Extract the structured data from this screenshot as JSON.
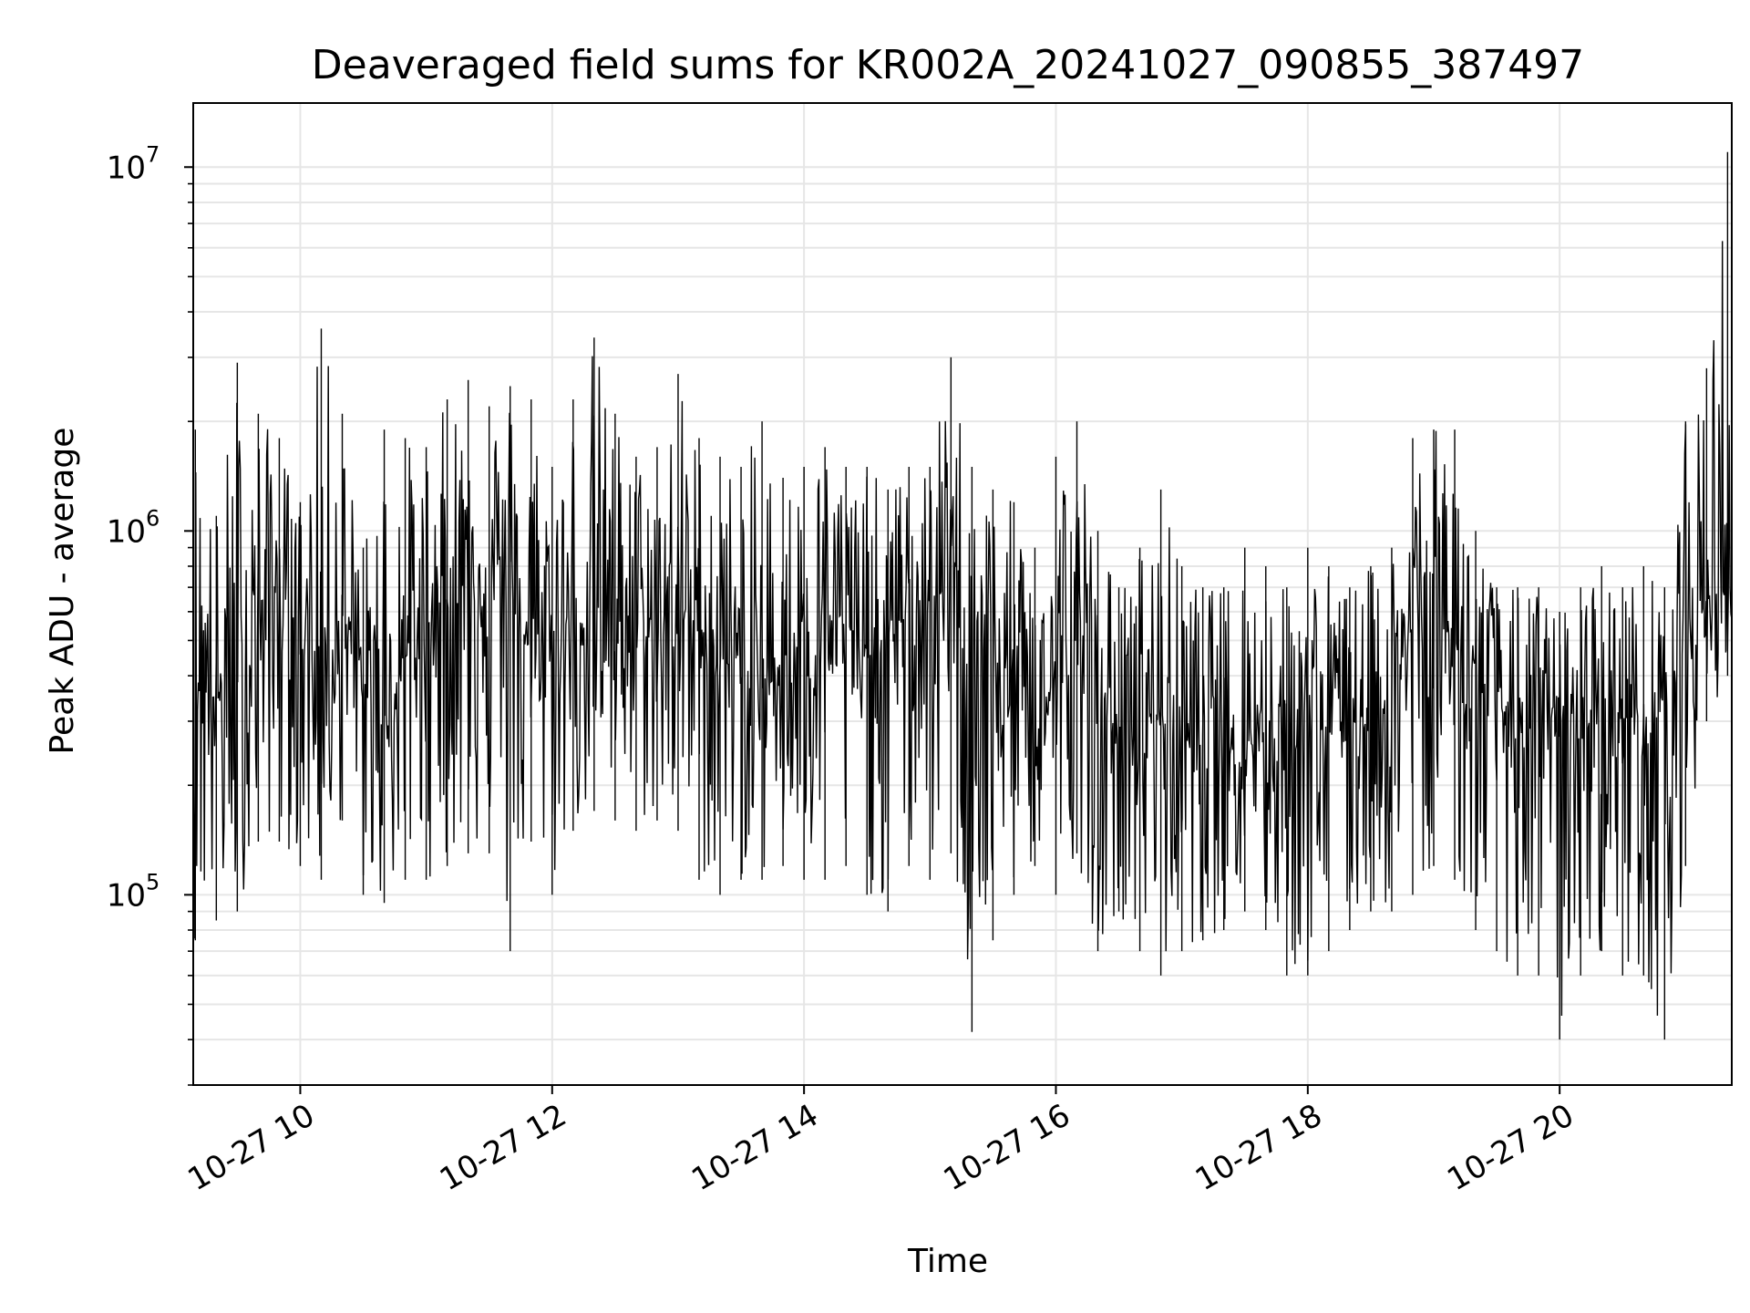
{
  "chart_data": {
    "type": "line",
    "title": "Deaveraged field sums for KR002A_20241027_090855_387497",
    "xlabel": "Time",
    "ylabel": "Peak ADU - average",
    "yscale": "log",
    "grid": true,
    "line_color": "#000000",
    "grid_color": "#e6e6e6",
    "xlim": [
      "2024-10-27 09:09",
      "2024-10-27 21:22"
    ],
    "ylim": [
      30000,
      15000000
    ],
    "x_ticks": [
      {
        "value": "2024-10-27 10:00",
        "label": "10-27 10"
      },
      {
        "value": "2024-10-27 12:00",
        "label": "10-27 12"
      },
      {
        "value": "2024-10-27 14:00",
        "label": "10-27 14"
      },
      {
        "value": "2024-10-27 16:00",
        "label": "10-27 16"
      },
      {
        "value": "2024-10-27 18:00",
        "label": "10-27 18"
      },
      {
        "value": "2024-10-27 20:00",
        "label": "10-27 20"
      }
    ],
    "y_ticks": [
      {
        "value": 100000,
        "base": "10",
        "exp": "5"
      },
      {
        "value": 1000000,
        "base": "10",
        "exp": "6"
      },
      {
        "value": 10000000,
        "base": "10",
        "exp": "7"
      }
    ],
    "series": [
      {
        "x": [
          "2024-10-27 09:10",
          "2024-10-27 09:20",
          "2024-10-27 09:30",
          "2024-10-27 09:40",
          "2024-10-27 09:50",
          "2024-10-27 10:00",
          "2024-10-27 10:10",
          "2024-10-27 10:20",
          "2024-10-27 10:30",
          "2024-10-27 10:40",
          "2024-10-27 10:50",
          "2024-10-27 11:00",
          "2024-10-27 11:10",
          "2024-10-27 11:20",
          "2024-10-27 11:30",
          "2024-10-27 11:40",
          "2024-10-27 11:50",
          "2024-10-27 12:00",
          "2024-10-27 12:10",
          "2024-10-27 12:20",
          "2024-10-27 12:30",
          "2024-10-27 12:40",
          "2024-10-27 12:50",
          "2024-10-27 13:00",
          "2024-10-27 13:10",
          "2024-10-27 13:20",
          "2024-10-27 13:30",
          "2024-10-27 13:40",
          "2024-10-27 13:50",
          "2024-10-27 14:00",
          "2024-10-27 14:10",
          "2024-10-27 14:20",
          "2024-10-27 14:30",
          "2024-10-27 14:40",
          "2024-10-27 14:50",
          "2024-10-27 15:00",
          "2024-10-27 15:10",
          "2024-10-27 15:20",
          "2024-10-27 15:30",
          "2024-10-27 15:40",
          "2024-10-27 15:50",
          "2024-10-27 16:00",
          "2024-10-27 16:10",
          "2024-10-27 16:20",
          "2024-10-27 16:30",
          "2024-10-27 16:40",
          "2024-10-27 16:50",
          "2024-10-27 17:00",
          "2024-10-27 17:10",
          "2024-10-27 17:20",
          "2024-10-27 17:30",
          "2024-10-27 17:40",
          "2024-10-27 17:50",
          "2024-10-27 18:00",
          "2024-10-27 18:10",
          "2024-10-27 18:20",
          "2024-10-27 18:30",
          "2024-10-27 18:40",
          "2024-10-27 18:50",
          "2024-10-27 19:00",
          "2024-10-27 19:10",
          "2024-10-27 19:20",
          "2024-10-27 19:30",
          "2024-10-27 19:40",
          "2024-10-27 19:50",
          "2024-10-27 20:00",
          "2024-10-27 20:10",
          "2024-10-27 20:20",
          "2024-10-27 20:30",
          "2024-10-27 20:40",
          "2024-10-27 20:50",
          "2024-10-27 21:00",
          "2024-10-27 21:10",
          "2024-10-27 21:20"
        ],
        "y": [
          450000,
          350000,
          300000,
          600000,
          700000,
          550000,
          400000,
          600000,
          350000,
          300000,
          450000,
          550000,
          650000,
          750000,
          800000,
          700000,
          450000,
          500000,
          550000,
          600000,
          650000,
          550000,
          500000,
          600000,
          550000,
          450000,
          400000,
          350000,
          450000,
          500000,
          600000,
          550000,
          450000,
          500000,
          600000,
          650000,
          700000,
          550000,
          400000,
          350000,
          300000,
          380000,
          420000,
          330000,
          280000,
          300000,
          320000,
          260000,
          280000,
          300000,
          270000,
          290000,
          260000,
          280000,
          300000,
          320000,
          300000,
          350000,
          550000,
          600000,
          500000,
          400000,
          330000,
          300000,
          280000,
          270000,
          300000,
          290000,
          310000,
          280000,
          320000,
          550000,
          650000,
          700000
        ],
        "y_high": [
          1900000,
          1100000,
          2900000,
          2100000,
          1800000,
          1200000,
          3600000,
          2100000,
          900000,
          1900000,
          1800000,
          1700000,
          2300000,
          2600000,
          2200000,
          2500000,
          2300000,
          1500000,
          2300000,
          3400000,
          2100000,
          1600000,
          1700000,
          2700000,
          1800000,
          1600000,
          1500000,
          2000000,
          1400000,
          1500000,
          1700000,
          1500000,
          1500000,
          1300000,
          1500000,
          1500000,
          3000000,
          1500000,
          1300000,
          1200000,
          900000,
          1600000,
          2000000,
          1000000,
          700000,
          900000,
          1300000,
          800000,
          700000,
          700000,
          900000,
          800000,
          700000,
          900000,
          800000,
          700000,
          800000,
          900000,
          1800000,
          1900000,
          1900000,
          1000000,
          700000,
          700000,
          700000,
          600000,
          700000,
          800000,
          700000,
          800000,
          700000,
          2000000,
          2800000,
          11000000
        ],
        "y_low": [
          75000,
          85000,
          90000,
          140000,
          140000,
          120000,
          110000,
          160000,
          100000,
          95000,
          110000,
          110000,
          120000,
          130000,
          130000,
          70000,
          140000,
          100000,
          150000,
          170000,
          160000,
          150000,
          160000,
          150000,
          110000,
          100000,
          110000,
          110000,
          120000,
          110000,
          110000,
          120000,
          100000,
          90000,
          120000,
          110000,
          130000,
          42000,
          75000,
          100000,
          120000,
          100000,
          130000,
          70000,
          90000,
          70000,
          60000,
          70000,
          75000,
          80000,
          90000,
          80000,
          60000,
          60000,
          70000,
          80000,
          90000,
          90000,
          100000,
          120000,
          110000,
          80000,
          70000,
          60000,
          60000,
          40000,
          60000,
          70000,
          60000,
          60000,
          40000,
          120000,
          300000,
          400000
        ]
      }
    ]
  }
}
